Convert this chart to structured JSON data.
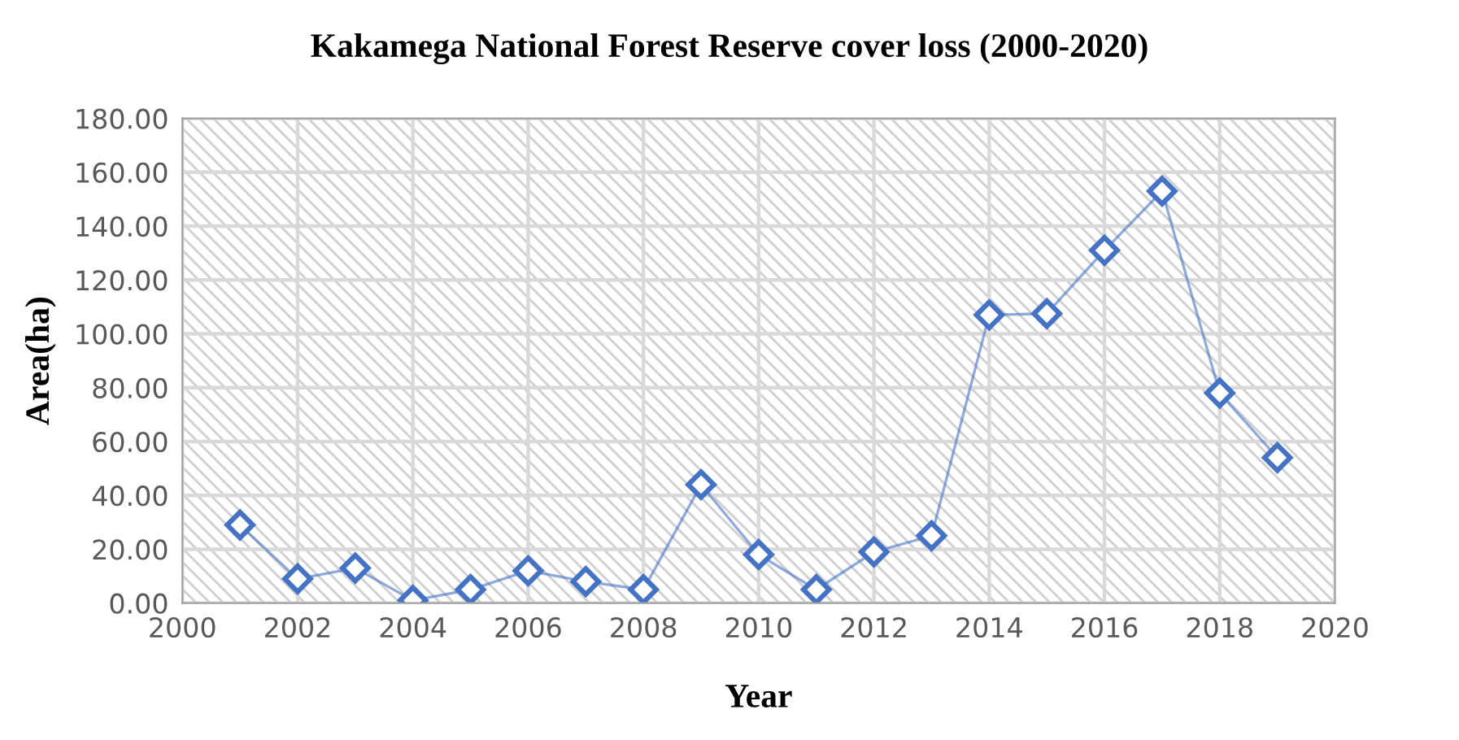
{
  "chart_data": {
    "type": "line",
    "title": "Kakamega National Forest Reserve cover loss (2000-2020)",
    "xlabel": "Year",
    "ylabel": "Area(ha)",
    "x": [
      2001,
      2002,
      2003,
      2004,
      2005,
      2006,
      2007,
      2008,
      2009,
      2010,
      2011,
      2012,
      2013,
      2014,
      2015,
      2016,
      2017,
      2018,
      2019
    ],
    "series": [
      {
        "color": "#4472c4",
        "values": [
          29,
          9,
          13,
          1,
          5,
          12,
          8,
          5,
          44,
          18,
          5,
          19,
          25,
          107,
          107.5,
          131,
          153,
          78,
          54
        ]
      }
    ],
    "xlim": [
      2000,
      2020
    ],
    "xticks": [
      2000,
      2002,
      2004,
      2006,
      2008,
      2010,
      2012,
      2014,
      2016,
      2018,
      2020
    ],
    "ylim": [
      0,
      180
    ],
    "yticks": [
      {
        "value": 0,
        "label": "0.00"
      },
      {
        "value": 20,
        "label": "20.00"
      },
      {
        "value": 40,
        "label": "40.00"
      },
      {
        "value": 60,
        "label": "60.00"
      },
      {
        "value": 80,
        "label": "80.00"
      },
      {
        "value": 100,
        "label": "100.00"
      },
      {
        "value": 120,
        "label": "120.00"
      },
      {
        "value": 140,
        "label": "140.00"
      },
      {
        "value": 160,
        "label": "160.00"
      },
      {
        "value": 180,
        "label": "180.00"
      }
    ],
    "grid": true,
    "marker": "diamond",
    "line_style": "solid",
    "legend": false
  }
}
